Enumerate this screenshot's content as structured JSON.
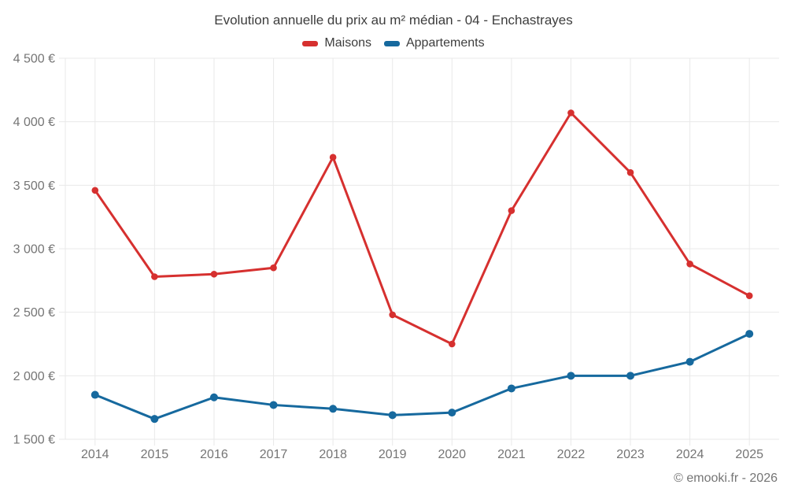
{
  "footer": {
    "credit": "© emooki.fr - 2026"
  },
  "chart_data": {
    "type": "line",
    "title": "Evolution annuelle du prix au m² médian - 04 - Enchastrayes",
    "categories": [
      "2014",
      "2015",
      "2016",
      "2017",
      "2018",
      "2019",
      "2020",
      "2021",
      "2022",
      "2023",
      "2024",
      "2025"
    ],
    "series": [
      {
        "name": "Maisons",
        "color": "#d6302f",
        "values": [
          3460,
          2780,
          2800,
          2850,
          3720,
          2480,
          2250,
          3300,
          4070,
          3600,
          2880,
          2630
        ]
      },
      {
        "name": "Appartements",
        "color": "#16699e",
        "values": [
          1850,
          1660,
          1830,
          1770,
          1740,
          1690,
          1710,
          1900,
          2000,
          2000,
          2110,
          2330
        ]
      }
    ],
    "ylabel": "",
    "xlabel": "",
    "ylim": [
      1500,
      4500
    ],
    "y_tick_step": 500,
    "y_tick_labels": [
      "1 500 €",
      "2 000 €",
      "2 500 €",
      "3 000 €",
      "3 500 €",
      "4 000 €",
      "4 500 €"
    ],
    "grid": true,
    "legend_position": "top",
    "unit": "€/m²"
  }
}
